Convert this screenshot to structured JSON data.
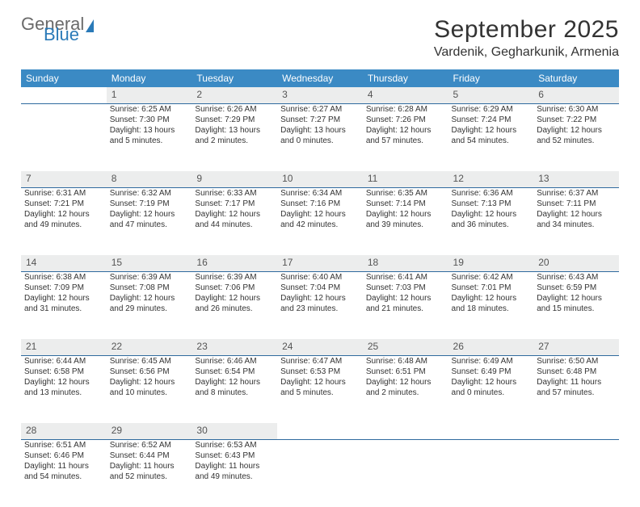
{
  "logo": {
    "text1": "General",
    "text2": "Blue"
  },
  "title": "September 2025",
  "location": "Vardenik, Gegharkunik, Armenia",
  "day_headers": [
    "Sunday",
    "Monday",
    "Tuesday",
    "Wednesday",
    "Thursday",
    "Friday",
    "Saturday"
  ],
  "colors": {
    "header_bg": "#3b8ac4",
    "daynum_bg": "#eceded",
    "daynum_border": "#2f6a9e",
    "text": "#333333",
    "logo_gray": "#6a6a6a",
    "logo_blue": "#2a7ab8"
  },
  "fonts": {
    "title_size_pt": 22,
    "location_size_pt": 12,
    "header_size_pt": 9,
    "body_size_pt": 7.5
  },
  "weeks": [
    {
      "nums": [
        "",
        "1",
        "2",
        "3",
        "4",
        "5",
        "6"
      ],
      "cells": [
        [],
        [
          "Sunrise: 6:25 AM",
          "Sunset: 7:30 PM",
          "Daylight: 13 hours",
          "and 5 minutes."
        ],
        [
          "Sunrise: 6:26 AM",
          "Sunset: 7:29 PM",
          "Daylight: 13 hours",
          "and 2 minutes."
        ],
        [
          "Sunrise: 6:27 AM",
          "Sunset: 7:27 PM",
          "Daylight: 13 hours",
          "and 0 minutes."
        ],
        [
          "Sunrise: 6:28 AM",
          "Sunset: 7:26 PM",
          "Daylight: 12 hours",
          "and 57 minutes."
        ],
        [
          "Sunrise: 6:29 AM",
          "Sunset: 7:24 PM",
          "Daylight: 12 hours",
          "and 54 minutes."
        ],
        [
          "Sunrise: 6:30 AM",
          "Sunset: 7:22 PM",
          "Daylight: 12 hours",
          "and 52 minutes."
        ]
      ]
    },
    {
      "nums": [
        "7",
        "8",
        "9",
        "10",
        "11",
        "12",
        "13"
      ],
      "cells": [
        [
          "Sunrise: 6:31 AM",
          "Sunset: 7:21 PM",
          "Daylight: 12 hours",
          "and 49 minutes."
        ],
        [
          "Sunrise: 6:32 AM",
          "Sunset: 7:19 PM",
          "Daylight: 12 hours",
          "and 47 minutes."
        ],
        [
          "Sunrise: 6:33 AM",
          "Sunset: 7:17 PM",
          "Daylight: 12 hours",
          "and 44 minutes."
        ],
        [
          "Sunrise: 6:34 AM",
          "Sunset: 7:16 PM",
          "Daylight: 12 hours",
          "and 42 minutes."
        ],
        [
          "Sunrise: 6:35 AM",
          "Sunset: 7:14 PM",
          "Daylight: 12 hours",
          "and 39 minutes."
        ],
        [
          "Sunrise: 6:36 AM",
          "Sunset: 7:13 PM",
          "Daylight: 12 hours",
          "and 36 minutes."
        ],
        [
          "Sunrise: 6:37 AM",
          "Sunset: 7:11 PM",
          "Daylight: 12 hours",
          "and 34 minutes."
        ]
      ]
    },
    {
      "nums": [
        "14",
        "15",
        "16",
        "17",
        "18",
        "19",
        "20"
      ],
      "cells": [
        [
          "Sunrise: 6:38 AM",
          "Sunset: 7:09 PM",
          "Daylight: 12 hours",
          "and 31 minutes."
        ],
        [
          "Sunrise: 6:39 AM",
          "Sunset: 7:08 PM",
          "Daylight: 12 hours",
          "and 29 minutes."
        ],
        [
          "Sunrise: 6:39 AM",
          "Sunset: 7:06 PM",
          "Daylight: 12 hours",
          "and 26 minutes."
        ],
        [
          "Sunrise: 6:40 AM",
          "Sunset: 7:04 PM",
          "Daylight: 12 hours",
          "and 23 minutes."
        ],
        [
          "Sunrise: 6:41 AM",
          "Sunset: 7:03 PM",
          "Daylight: 12 hours",
          "and 21 minutes."
        ],
        [
          "Sunrise: 6:42 AM",
          "Sunset: 7:01 PM",
          "Daylight: 12 hours",
          "and 18 minutes."
        ],
        [
          "Sunrise: 6:43 AM",
          "Sunset: 6:59 PM",
          "Daylight: 12 hours",
          "and 15 minutes."
        ]
      ]
    },
    {
      "nums": [
        "21",
        "22",
        "23",
        "24",
        "25",
        "26",
        "27"
      ],
      "cells": [
        [
          "Sunrise: 6:44 AM",
          "Sunset: 6:58 PM",
          "Daylight: 12 hours",
          "and 13 minutes."
        ],
        [
          "Sunrise: 6:45 AM",
          "Sunset: 6:56 PM",
          "Daylight: 12 hours",
          "and 10 minutes."
        ],
        [
          "Sunrise: 6:46 AM",
          "Sunset: 6:54 PM",
          "Daylight: 12 hours",
          "and 8 minutes."
        ],
        [
          "Sunrise: 6:47 AM",
          "Sunset: 6:53 PM",
          "Daylight: 12 hours",
          "and 5 minutes."
        ],
        [
          "Sunrise: 6:48 AM",
          "Sunset: 6:51 PM",
          "Daylight: 12 hours",
          "and 2 minutes."
        ],
        [
          "Sunrise: 6:49 AM",
          "Sunset: 6:49 PM",
          "Daylight: 12 hours",
          "and 0 minutes."
        ],
        [
          "Sunrise: 6:50 AM",
          "Sunset: 6:48 PM",
          "Daylight: 11 hours",
          "and 57 minutes."
        ]
      ]
    },
    {
      "nums": [
        "28",
        "29",
        "30",
        "",
        "",
        "",
        ""
      ],
      "cells": [
        [
          "Sunrise: 6:51 AM",
          "Sunset: 6:46 PM",
          "Daylight: 11 hours",
          "and 54 minutes."
        ],
        [
          "Sunrise: 6:52 AM",
          "Sunset: 6:44 PM",
          "Daylight: 11 hours",
          "and 52 minutes."
        ],
        [
          "Sunrise: 6:53 AM",
          "Sunset: 6:43 PM",
          "Daylight: 11 hours",
          "and 49 minutes."
        ],
        [],
        [],
        [],
        []
      ]
    }
  ]
}
